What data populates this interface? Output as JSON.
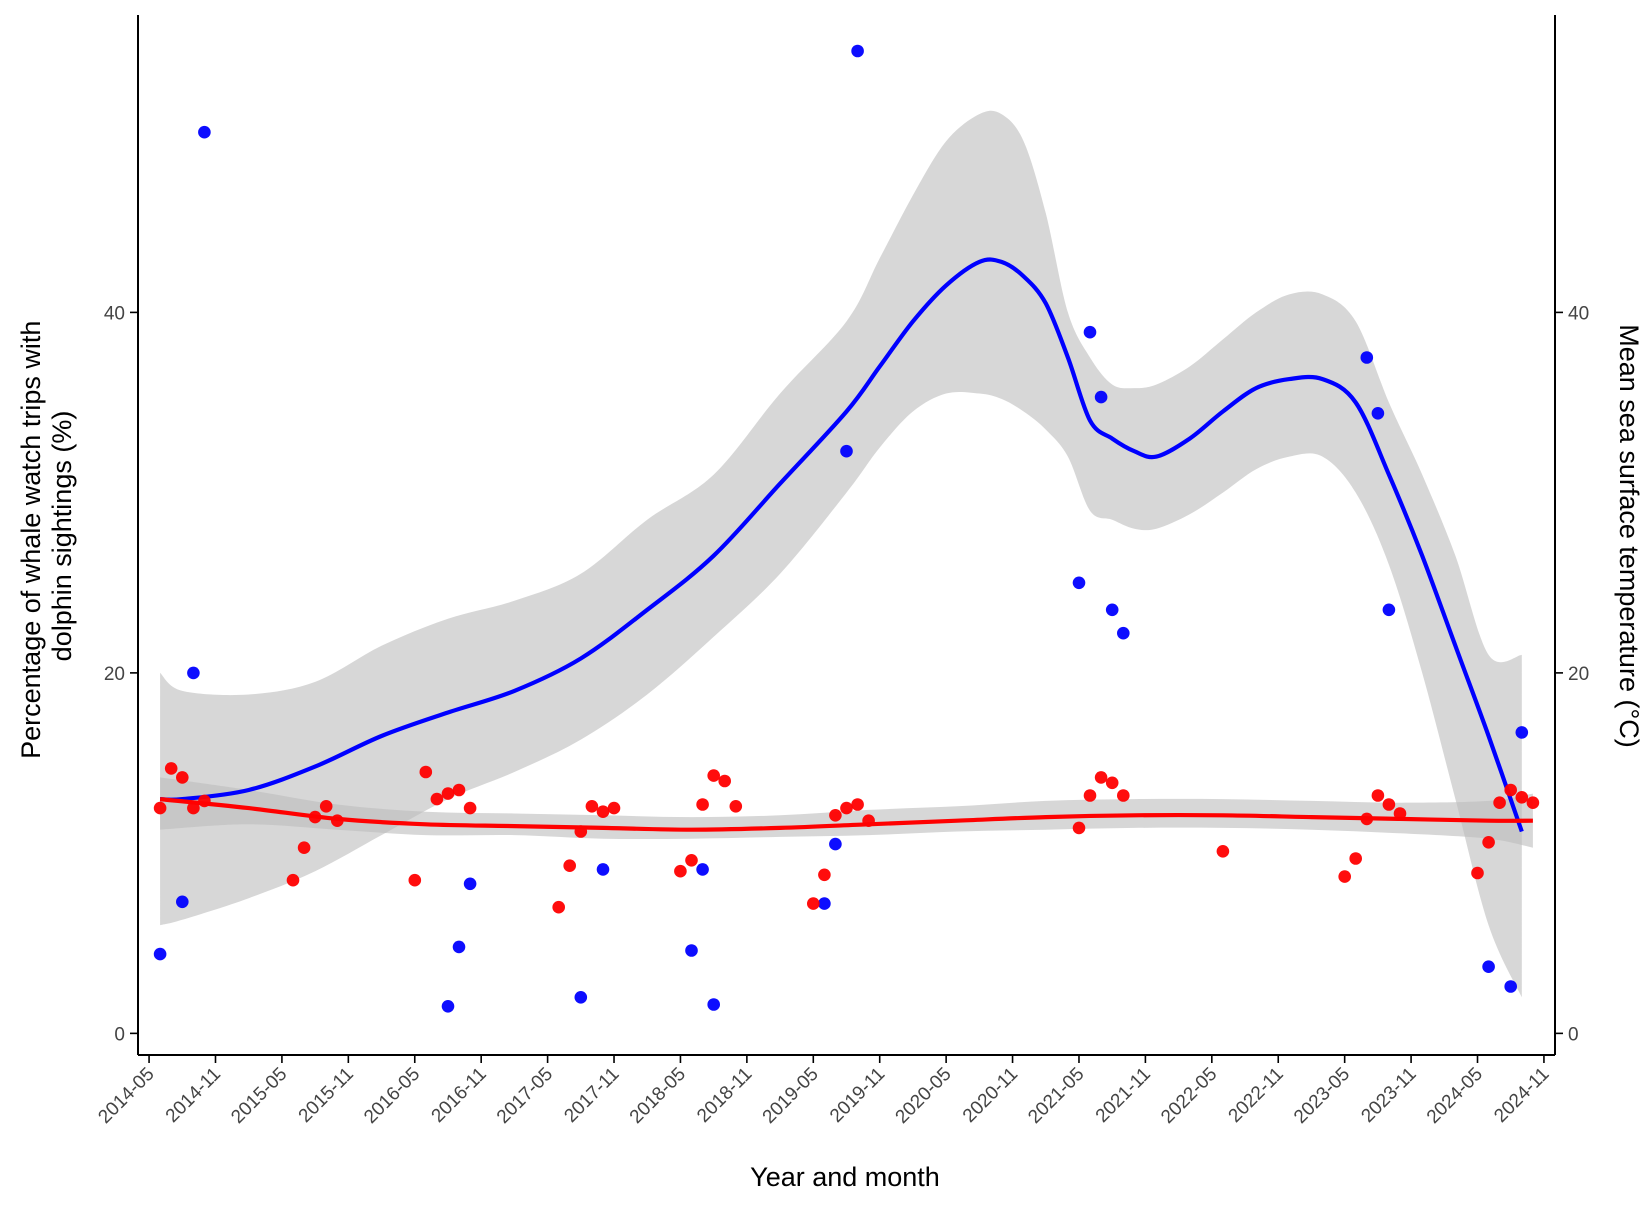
{
  "chart_data": {
    "type": "scatter",
    "xlabel": "Year and month",
    "ylabel_left": "Percentage of whale watch trips with dolphin sightings (%)",
    "ylabel_left_lines": [
      "Percentage of whale watch trips with",
      "dolphin sightings (%)"
    ],
    "ylabel_right": "Mean sea surface temperature (°C)",
    "x_tick_labels": [
      "2014-05",
      "2014-11",
      "2015-05",
      "2015-11",
      "2016-05",
      "2016-11",
      "2017-05",
      "2017-11",
      "2018-05",
      "2018-11",
      "2019-05",
      "2019-11",
      "2020-05",
      "2020-11",
      "2021-05",
      "2021-11",
      "2022-05",
      "2022-11",
      "2023-05",
      "2023-11",
      "2024-05",
      "2024-11"
    ],
    "xlim": [
      "2014-04-01",
      "2024-12-01"
    ],
    "ylim": [
      -1.2,
      56.5
    ],
    "y_ticks": [
      0,
      20,
      40
    ],
    "grid": false,
    "colors": {
      "dolphin": "#0000ff",
      "sst": "#ff0000",
      "ribbon": "#bdbdbd"
    },
    "series": [
      {
        "role": "dolphin_sightings_points",
        "color": "#0000ff",
        "points": [
          [
            "2014-06",
            4.4
          ],
          [
            "2014-08",
            7.3
          ],
          [
            "2014-09",
            20.0
          ],
          [
            "2014-10",
            50.0
          ],
          [
            "2016-08",
            1.5
          ],
          [
            "2016-09",
            4.8
          ],
          [
            "2016-10",
            8.3
          ],
          [
            "2017-08",
            2.0
          ],
          [
            "2017-10",
            9.1
          ],
          [
            "2018-06",
            4.6
          ],
          [
            "2018-07",
            9.1
          ],
          [
            "2018-08",
            1.6
          ],
          [
            "2019-06",
            7.2
          ],
          [
            "2019-07",
            10.5
          ],
          [
            "2019-08",
            32.3
          ],
          [
            "2019-09",
            54.5
          ],
          [
            "2021-05",
            25.0
          ],
          [
            "2021-06",
            38.9
          ],
          [
            "2021-07",
            35.3
          ],
          [
            "2021-08",
            23.5
          ],
          [
            "2021-09",
            22.2
          ],
          [
            "2023-07",
            37.5
          ],
          [
            "2023-08",
            34.4
          ],
          [
            "2023-09",
            23.5
          ],
          [
            "2024-06",
            3.7
          ],
          [
            "2024-08",
            2.6
          ],
          [
            "2024-09",
            16.7
          ]
        ]
      },
      {
        "role": "sea_surface_temperature_points",
        "color": "#ff0000",
        "points": [
          [
            "2014-06",
            12.5
          ],
          [
            "2014-07",
            14.7
          ],
          [
            "2014-08",
            14.2
          ],
          [
            "2014-09",
            12.5
          ],
          [
            "2014-10",
            12.9
          ],
          [
            "2015-06",
            8.5
          ],
          [
            "2015-07",
            10.3
          ],
          [
            "2015-08",
            12.0
          ],
          [
            "2015-09",
            12.6
          ],
          [
            "2015-10",
            11.8
          ],
          [
            "2016-05",
            8.5
          ],
          [
            "2016-06",
            14.5
          ],
          [
            "2016-07",
            13.0
          ],
          [
            "2016-08",
            13.3
          ],
          [
            "2016-09",
            13.5
          ],
          [
            "2016-10",
            12.5
          ],
          [
            "2017-06",
            7.0
          ],
          [
            "2017-07",
            9.3
          ],
          [
            "2017-08",
            11.2
          ],
          [
            "2017-09",
            12.6
          ],
          [
            "2017-10",
            12.3
          ],
          [
            "2017-11",
            12.5
          ],
          [
            "2018-05",
            9.0
          ],
          [
            "2018-06",
            9.6
          ],
          [
            "2018-07",
            12.7
          ],
          [
            "2018-08",
            14.3
          ],
          [
            "2018-09",
            14.0
          ],
          [
            "2018-10",
            12.6
          ],
          [
            "2019-05",
            7.2
          ],
          [
            "2019-06",
            8.8
          ],
          [
            "2019-07",
            12.1
          ],
          [
            "2019-08",
            12.5
          ],
          [
            "2019-09",
            12.7
          ],
          [
            "2019-10",
            11.8
          ],
          [
            "2021-05",
            11.4
          ],
          [
            "2021-06",
            13.2
          ],
          [
            "2021-07",
            14.2
          ],
          [
            "2021-08",
            13.9
          ],
          [
            "2021-09",
            13.2
          ],
          [
            "2022-06",
            10.1
          ],
          [
            "2023-05",
            8.7
          ],
          [
            "2023-06",
            9.7
          ],
          [
            "2023-07",
            11.9
          ],
          [
            "2023-08",
            13.2
          ],
          [
            "2023-09",
            12.7
          ],
          [
            "2023-10",
            12.2
          ],
          [
            "2024-05",
            8.9
          ],
          [
            "2024-06",
            10.6
          ],
          [
            "2024-07",
            12.8
          ],
          [
            "2024-08",
            13.5
          ],
          [
            "2024-09",
            13.1
          ],
          [
            "2024-10",
            12.8
          ]
        ]
      },
      {
        "role": "dolphin_smooth",
        "color": "#0000ff",
        "x": [
          "2014-06",
          "2014-08",
          "2015-02",
          "2015-08",
          "2016-02",
          "2016-08",
          "2017-02",
          "2017-08",
          "2018-02",
          "2018-08",
          "2019-02",
          "2019-08",
          "2019-11",
          "2020-02",
          "2020-05",
          "2020-08",
          "2020-10",
          "2020-12",
          "2021-02",
          "2021-04",
          "2021-06",
          "2021-08",
          "2021-10",
          "2021-12",
          "2022-03",
          "2022-06",
          "2022-09",
          "2022-12",
          "2023-03",
          "2023-06",
          "2023-09",
          "2023-12",
          "2024-03",
          "2024-06",
          "2024-09"
        ],
        "y": [
          13.0,
          13.0,
          13.5,
          14.8,
          16.5,
          17.8,
          19.0,
          20.8,
          23.5,
          26.5,
          30.5,
          34.5,
          37.0,
          39.5,
          41.5,
          42.8,
          42.8,
          42.0,
          40.5,
          37.5,
          34.0,
          33.0,
          32.3,
          32.0,
          33.0,
          34.5,
          35.8,
          36.3,
          36.3,
          35.0,
          31.0,
          26.5,
          21.5,
          16.5,
          11.2
        ],
        "ci_lower": [
          6.0,
          6.3,
          7.5,
          9.0,
          11.0,
          13.0,
          14.5,
          16.3,
          18.8,
          22.0,
          25.5,
          30.0,
          32.5,
          34.5,
          35.5,
          35.5,
          35.2,
          34.5,
          33.5,
          32.0,
          29.0,
          28.5,
          28.0,
          28.0,
          28.8,
          30.0,
          31.3,
          32.0,
          32.0,
          30.0,
          26.0,
          20.0,
          13.0,
          6.0,
          2.0
        ],
        "ci_upper": [
          20.0,
          19.0,
          18.8,
          19.5,
          21.5,
          23.0,
          24.0,
          25.5,
          28.5,
          31.0,
          35.5,
          39.5,
          43.0,
          46.5,
          49.5,
          51.0,
          51.0,
          49.5,
          45.5,
          40.0,
          37.5,
          36.0,
          35.8,
          36.0,
          37.0,
          38.5,
          40.0,
          41.0,
          41.0,
          39.5,
          35.0,
          31.0,
          26.5,
          21.0,
          21.0
        ]
      },
      {
        "role": "sst_smooth",
        "color": "#ff0000",
        "x": [
          "2014-06",
          "2015-02",
          "2015-10",
          "2016-06",
          "2017-02",
          "2017-10",
          "2018-06",
          "2019-02",
          "2019-10",
          "2020-06",
          "2021-02",
          "2021-10",
          "2022-06",
          "2023-02",
          "2023-10",
          "2024-06",
          "2024-10"
        ],
        "y": [
          13.0,
          12.5,
          11.9,
          11.6,
          11.5,
          11.4,
          11.3,
          11.4,
          11.6,
          11.8,
          12.0,
          12.1,
          12.1,
          12.0,
          11.9,
          11.8,
          11.8
        ],
        "ci_lower": [
          11.3,
          11.6,
          11.3,
          11.0,
          11.0,
          10.8,
          10.8,
          10.9,
          11.0,
          11.2,
          11.3,
          11.4,
          11.4,
          11.3,
          11.1,
          10.8,
          10.3
        ],
        "ci_upper": [
          14.2,
          13.5,
          12.7,
          12.3,
          12.2,
          12.1,
          12.0,
          12.1,
          12.4,
          12.6,
          12.9,
          13.0,
          13.0,
          12.9,
          12.8,
          12.9,
          13.3
        ]
      }
    ]
  }
}
